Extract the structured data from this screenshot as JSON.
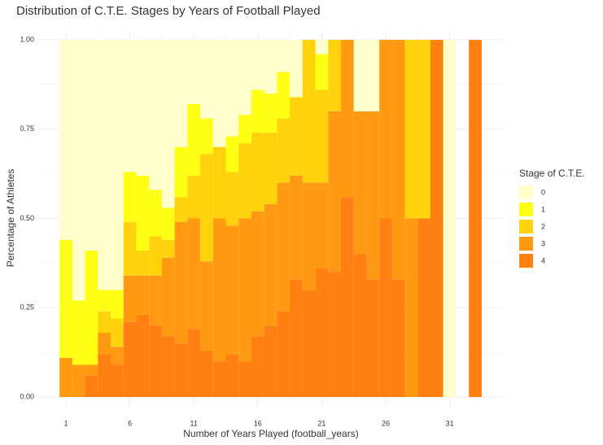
{
  "chart_data": {
    "type": "stacked-histogram-fill",
    "title": "Distribution of C.T.E. Stages by Years of Football Played",
    "x_label": "Number of Years Played (football_years)",
    "y_label": "Percentage of Athletes",
    "legend_title": "Stage of C.T.E.",
    "bins": [
      0.5,
      1.5,
      2.5,
      3.5,
      4.5,
      5.5,
      6.5,
      7.5,
      8.5,
      9.5,
      10.5,
      11.5,
      12.5,
      13.5,
      14.5,
      15.5,
      16.5,
      17.5,
      18.5,
      19.5,
      20.5,
      21.5,
      22.5,
      23.5,
      24.5,
      25.5,
      26.5,
      27.5,
      28.5,
      29.5,
      30.5,
      31.5,
      32.5,
      33.5
    ],
    "series": [
      {
        "name": "0",
        "color": "#FFFFCC",
        "values": [
          0.56,
          0.73,
          0.59,
          0.7,
          0.7,
          0.37,
          0.38,
          0.42,
          0.47,
          0.3,
          0.18,
          0.22,
          0.3,
          0.27,
          0.21,
          0.14,
          0.15,
          0.09,
          0.16,
          0,
          0.04,
          0,
          0,
          0.2,
          0.2,
          0,
          0,
          0,
          0,
          0,
          1,
          0,
          0
        ]
      },
      {
        "name": "1",
        "color": "#FFFF14",
        "values": [
          0.33,
          0.18,
          0.32,
          0.06,
          0.08,
          0.14,
          0.21,
          0.13,
          0.09,
          0.14,
          0.2,
          0.1,
          0,
          0.1,
          0.08,
          0.12,
          0.11,
          0.13,
          0,
          0,
          0.1,
          0,
          0,
          0,
          0,
          0,
          0,
          0,
          0,
          0,
          0,
          0,
          0
        ]
      },
      {
        "name": "2",
        "color": "#FFD20C",
        "values": [
          0,
          0,
          0,
          0.06,
          0.08,
          0.15,
          0.07,
          0.11,
          0.05,
          0.07,
          0.12,
          0.3,
          0.2,
          0.15,
          0.21,
          0.22,
          0.2,
          0.18,
          0.22,
          0.4,
          0.26,
          0.2,
          0,
          0,
          0,
          0,
          0,
          0.5,
          0.5,
          0,
          0,
          0,
          0
        ]
      },
      {
        "name": "3",
        "color": "#FF9A12",
        "values": [
          0.11,
          0.09,
          0.03,
          0.06,
          0.05,
          0.13,
          0.11,
          0.14,
          0.22,
          0.34,
          0.31,
          0.25,
          0.4,
          0.36,
          0.4,
          0.35,
          0.34,
          0.36,
          0.29,
          0.3,
          0.24,
          0.45,
          0.44,
          0.4,
          0.47,
          0.5,
          0.67,
          0.5,
          0,
          0,
          0,
          0,
          0
        ]
      },
      {
        "name": "4",
        "color": "#FF7F10",
        "values": [
          0,
          0,
          0.06,
          0.12,
          0.09,
          0.21,
          0.23,
          0.2,
          0.17,
          0.15,
          0.19,
          0.13,
          0.1,
          0.12,
          0.1,
          0.17,
          0.2,
          0.24,
          0.33,
          0.3,
          0.36,
          0.35,
          0.56,
          0.4,
          0.33,
          0.5,
          0.33,
          0,
          0.5,
          1,
          0,
          0,
          1
        ]
      }
    ],
    "xlim": [
      -1.1,
      35.16
    ],
    "xticks": [
      1,
      6,
      11,
      16,
      21,
      26,
      31
    ],
    "ylim": [
      -0.025,
      1.025
    ],
    "yticks": [
      {
        "value": 0,
        "label": "0.00"
      },
      {
        "value": 0.25,
        "label": "0.25"
      },
      {
        "value": 0.5,
        "label": "0.50"
      },
      {
        "value": 0.75,
        "label": "0.75"
      },
      {
        "value": 1,
        "label": "1.00"
      }
    ],
    "grid": true
  }
}
